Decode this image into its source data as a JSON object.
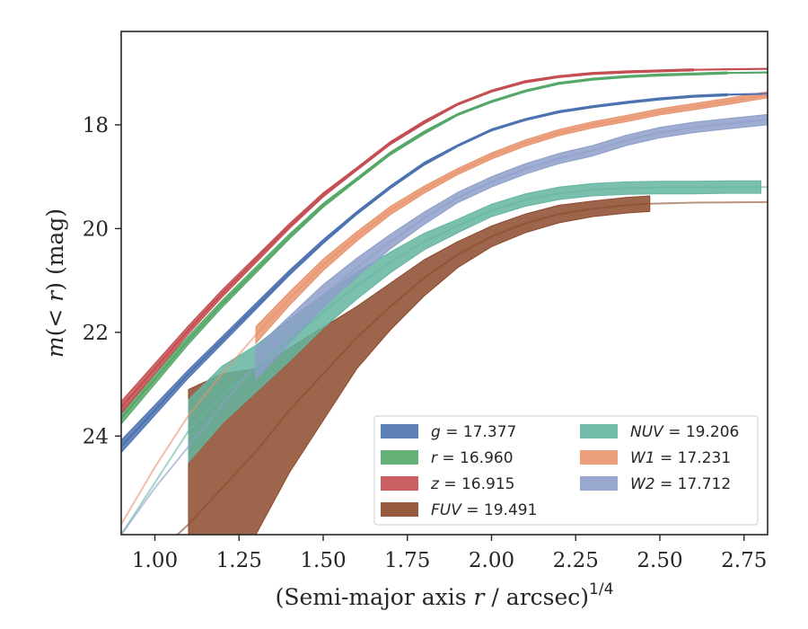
{
  "chart_data": {
    "type": "area",
    "title": "",
    "xlabel": "(Semi-major axis r / arcsec)^{1/4}",
    "ylabel": "m(<r) (mag)",
    "xlim": [
      0.9,
      2.82
    ],
    "ylim": [
      25.9,
      16.2
    ],
    "y_inverted": true,
    "grid": false,
    "legend_position": "lower-right",
    "x_ticks": [
      "1.00",
      "1.25",
      "1.50",
      "1.75",
      "2.00",
      "2.25",
      "2.50",
      "2.75"
    ],
    "y_ticks": [
      "18",
      "20",
      "22",
      "24"
    ],
    "series": [
      {
        "name": "g = 17.377",
        "legend_var": "g",
        "legend_value": "17.377",
        "color": "#4c72b0",
        "line": true,
        "x": [
          0.9,
          1.0,
          1.1,
          1.2,
          1.3,
          1.4,
          1.5,
          1.6,
          1.7,
          1.8,
          1.9,
          2.0,
          2.1,
          2.2,
          2.3,
          2.4,
          2.5,
          2.6,
          2.7,
          2.82
        ],
        "y": [
          24.2,
          23.5,
          22.8,
          22.15,
          21.5,
          20.85,
          20.25,
          19.7,
          19.2,
          18.75,
          18.4,
          18.1,
          17.9,
          17.75,
          17.65,
          17.57,
          17.5,
          17.45,
          17.42,
          17.4
        ],
        "half_width": [
          0.12,
          0.1,
          0.08,
          0.07,
          0.06,
          0.05,
          0.04,
          0.03,
          0.03,
          0.03,
          0.02,
          0.02,
          0.02,
          0.02,
          0.02,
          0.02,
          0.02,
          0.02,
          0.02,
          0.02
        ],
        "band_xmax": 2.72
      },
      {
        "name": "r = 16.960",
        "legend_var": "r",
        "legend_value": "16.960",
        "color": "#55a868",
        "line": true,
        "x": [
          0.9,
          1.0,
          1.1,
          1.2,
          1.3,
          1.4,
          1.5,
          1.6,
          1.7,
          1.8,
          1.9,
          2.0,
          2.1,
          2.2,
          2.3,
          2.4,
          2.5,
          2.6,
          2.7,
          2.82
        ],
        "y": [
          23.65,
          22.9,
          22.15,
          21.45,
          20.8,
          20.15,
          19.55,
          19.05,
          18.55,
          18.15,
          17.8,
          17.55,
          17.35,
          17.2,
          17.12,
          17.07,
          17.04,
          17.02,
          17.0,
          16.99
        ],
        "half_width": [
          0.12,
          0.1,
          0.08,
          0.07,
          0.06,
          0.05,
          0.04,
          0.03,
          0.03,
          0.03,
          0.02,
          0.02,
          0.02,
          0.02,
          0.02,
          0.02,
          0.02,
          0.02,
          0.02,
          0.02
        ],
        "band_xmax": 2.72
      },
      {
        "name": "z = 16.915",
        "legend_var": "z",
        "legend_value": "16.915",
        "color": "#c44e52",
        "line": true,
        "x": [
          0.9,
          1.0,
          1.1,
          1.2,
          1.3,
          1.4,
          1.5,
          1.6,
          1.7,
          1.8,
          1.9,
          2.0,
          2.1,
          2.2,
          2.3,
          2.4,
          2.5,
          2.6,
          2.7,
          2.82
        ],
        "y": [
          23.45,
          22.7,
          21.95,
          21.25,
          20.6,
          19.95,
          19.35,
          18.85,
          18.35,
          17.95,
          17.6,
          17.35,
          17.17,
          17.07,
          17.01,
          16.98,
          16.96,
          16.94,
          16.93,
          16.92
        ],
        "half_width": [
          0.12,
          0.1,
          0.08,
          0.07,
          0.06,
          0.05,
          0.04,
          0.03,
          0.03,
          0.03,
          0.02,
          0.02,
          0.02,
          0.02,
          0.02,
          0.02,
          0.02,
          0.02,
          0.02,
          0.02
        ],
        "band_xmax": 2.64
      },
      {
        "name": "FUV = 19.491",
        "legend_var": "FUV",
        "legend_value": "19.491",
        "color": "#8c4a2b",
        "line": true,
        "x": [
          0.9,
          1.1,
          1.2,
          1.3,
          1.4,
          1.5,
          1.6,
          1.7,
          1.8,
          1.9,
          2.0,
          2.1,
          2.2,
          2.3,
          2.4,
          2.47,
          2.6,
          2.82
        ],
        "y": [
          26.9,
          25.7,
          25.0,
          24.3,
          23.5,
          22.8,
          22.1,
          21.5,
          20.95,
          20.5,
          20.15,
          19.9,
          19.72,
          19.62,
          19.55,
          19.52,
          19.5,
          19.49
        ],
        "half_width": [
          0.8,
          2.6,
          2.2,
          1.6,
          1.2,
          0.9,
          0.6,
          0.45,
          0.35,
          0.25,
          0.2,
          0.18,
          0.17,
          0.15,
          0.15,
          0.15,
          0.0,
          0.0
        ],
        "band_xmin": 1.1,
        "band_xmax": 2.47
      },
      {
        "name": "NUV = 19.206",
        "legend_var": "NUV",
        "legend_value": "19.206",
        "color": "#64b5a0",
        "line": true,
        "x": [
          0.9,
          1.1,
          1.2,
          1.3,
          1.4,
          1.5,
          1.6,
          1.7,
          1.8,
          1.9,
          2.0,
          2.1,
          2.2,
          2.3,
          2.4,
          2.5,
          2.6,
          2.7,
          2.8,
          2.82
        ],
        "y": [
          25.9,
          23.9,
          23.2,
          22.7,
          22.15,
          21.6,
          21.1,
          20.65,
          20.25,
          19.95,
          19.65,
          19.45,
          19.32,
          19.25,
          19.22,
          19.21,
          19.21,
          19.2,
          19.2,
          19.2
        ],
        "half_width": [
          0.3,
          0.6,
          0.55,
          0.45,
          0.4,
          0.32,
          0.26,
          0.2,
          0.16,
          0.13,
          0.12,
          0.12,
          0.12,
          0.12,
          0.12,
          0.12,
          0.12,
          0.12,
          0.12,
          0.12
        ],
        "band_xmin": 1.1,
        "band_xmax": 2.8
      },
      {
        "name": "W1 = 17.231",
        "legend_var": "W1",
        "legend_value": "17.231",
        "color": "#e8936c",
        "line": true,
        "x": [
          0.9,
          1.0,
          1.1,
          1.2,
          1.3,
          1.4,
          1.5,
          1.6,
          1.7,
          1.8,
          1.9,
          2.0,
          2.1,
          2.2,
          2.3,
          2.4,
          2.5,
          2.6,
          2.7,
          2.82
        ],
        "y": [
          25.7,
          24.6,
          23.6,
          22.8,
          22.05,
          21.35,
          20.7,
          20.15,
          19.65,
          19.25,
          18.9,
          18.6,
          18.35,
          18.15,
          18.0,
          17.88,
          17.75,
          17.65,
          17.55,
          17.42
        ],
        "half_width": [
          0.0,
          0.0,
          0.0,
          0.0,
          0.16,
          0.13,
          0.11,
          0.09,
          0.08,
          0.07,
          0.06,
          0.06,
          0.06,
          0.06,
          0.06,
          0.06,
          0.06,
          0.06,
          0.06,
          0.06
        ],
        "band_xmin": 1.29,
        "band_xmax": 2.82
      },
      {
        "name": "W2 = 17.712",
        "legend_var": "W2",
        "legend_value": "17.712",
        "color": "#8d9fc9",
        "line": true,
        "x": [
          0.9,
          1.0,
          1.1,
          1.2,
          1.3,
          1.4,
          1.5,
          1.6,
          1.7,
          1.8,
          1.9,
          2.0,
          2.1,
          2.2,
          2.3,
          2.4,
          2.5,
          2.6,
          2.7,
          2.82
        ],
        "y": [
          25.9,
          25.0,
          24.2,
          23.4,
          22.6,
          21.95,
          21.3,
          20.75,
          20.25,
          19.8,
          19.4,
          19.1,
          18.85,
          18.65,
          18.5,
          18.3,
          18.15,
          18.05,
          17.98,
          17.9
        ],
        "half_width": [
          0.0,
          0.0,
          0.0,
          0.0,
          0.3,
          0.26,
          0.22,
          0.18,
          0.14,
          0.12,
          0.1,
          0.1,
          0.1,
          0.1,
          0.1,
          0.1,
          0.1,
          0.1,
          0.1,
          0.1
        ],
        "band_xmin": 1.29,
        "band_xmax": 2.82
      }
    ]
  }
}
